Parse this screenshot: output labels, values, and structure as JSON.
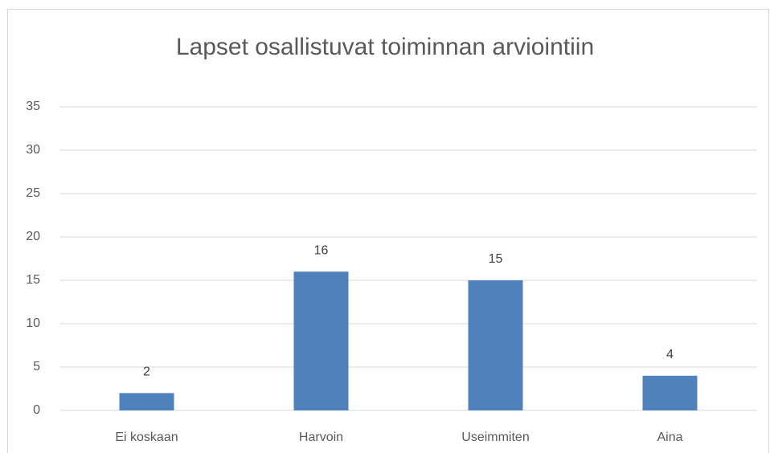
{
  "chart_data": {
    "type": "bar",
    "title": "Lapset osallistuvat toiminnan arviointiin",
    "categories": [
      "Ei koskaan",
      "Harvoin",
      "Useimmiten",
      "Aina"
    ],
    "values": [
      2,
      16,
      15,
      4
    ],
    "color": "#4f81bd",
    "ylim": [
      0,
      35
    ],
    "yticks": [
      0,
      5,
      10,
      15,
      20,
      25,
      30,
      35
    ],
    "grid": true,
    "data_labels": true
  }
}
